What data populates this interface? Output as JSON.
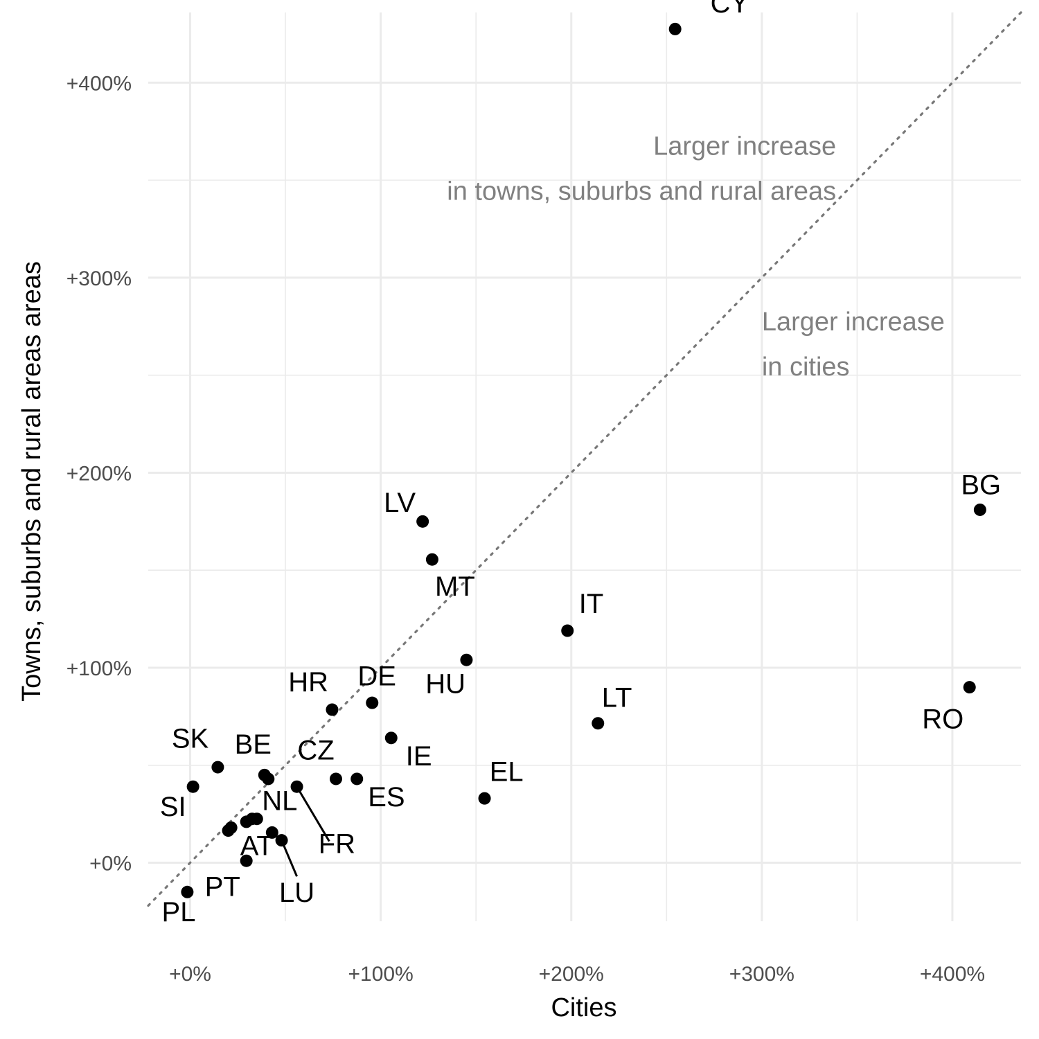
{
  "chart_data": {
    "type": "scatter",
    "title": "",
    "xlabel": "Cities",
    "ylabel": "Towns, suburbs and rural areas areas",
    "xlim": [
      -22,
      436
    ],
    "ylim": [
      -30,
      436
    ],
    "xticks": [
      {
        "value": 0,
        "label": "+0%"
      },
      {
        "value": 100,
        "label": "+100%"
      },
      {
        "value": 200,
        "label": "+200%"
      },
      {
        "value": 300,
        "label": "+300%"
      },
      {
        "value": 400,
        "label": "+400%"
      }
    ],
    "yticks": [
      {
        "value": 0,
        "label": "+0%"
      },
      {
        "value": 100,
        "label": "+100%"
      },
      {
        "value": 200,
        "label": "+200%"
      },
      {
        "value": 300,
        "label": "+300%"
      },
      {
        "value": 400,
        "label": "+400%"
      }
    ],
    "grid": true,
    "reference_line": "y = x (dotted)",
    "annotations": [
      {
        "lines": [
          "Larger increase",
          "in towns, suburbs and rural areas"
        ],
        "x": 339,
        "y": 363,
        "align": "right"
      },
      {
        "lines": [
          "Larger increase",
          "in cities"
        ],
        "x": 300,
        "y": 273,
        "align": "left"
      }
    ],
    "points": [
      {
        "label": "CY",
        "x": 254.5,
        "y": 427.5,
        "lx": 273,
        "ly": 436,
        "anchor": "start"
      },
      {
        "label": "BG",
        "x": 414.5,
        "y": 181,
        "lx": 415,
        "ly": 189,
        "anchor": "middle"
      },
      {
        "label": "RO",
        "x": 409,
        "y": 90,
        "lx": 395,
        "ly": 69,
        "anchor": "middle"
      },
      {
        "label": "LV",
        "x": 122,
        "y": 175,
        "lx": 110,
        "ly": 180,
        "anchor": "middle"
      },
      {
        "label": "MT",
        "x": 127,
        "y": 155.5,
        "lx": 139,
        "ly": 137,
        "anchor": "middle"
      },
      {
        "label": "IT",
        "x": 198,
        "y": 119,
        "lx": 204,
        "ly": 128,
        "anchor": "start"
      },
      {
        "label": "HU",
        "x": 145,
        "y": 104,
        "lx": 134,
        "ly": 87,
        "anchor": "middle"
      },
      {
        "label": "LT",
        "x": 214,
        "y": 71.5,
        "lx": 216,
        "ly": 80,
        "anchor": "start"
      },
      {
        "label": "HR",
        "x": 74.5,
        "y": 78.5,
        "lx": 62,
        "ly": 88,
        "anchor": "middle"
      },
      {
        "label": "DE",
        "x": 95.5,
        "y": 82,
        "lx": 98,
        "ly": 91,
        "anchor": "middle"
      },
      {
        "label": "IE",
        "x": 105.5,
        "y": 64,
        "lx": 120,
        "ly": 50,
        "anchor": "middle"
      },
      {
        "label": "EL",
        "x": 154.5,
        "y": 33,
        "lx": 166,
        "ly": 42,
        "anchor": "middle"
      },
      {
        "label": "ES",
        "x": 87.5,
        "y": 43,
        "lx": 103,
        "ly": 29,
        "anchor": "middle"
      },
      {
        "label": "SK",
        "x": 14.5,
        "y": 49,
        "lx": 0,
        "ly": 59,
        "anchor": "middle"
      },
      {
        "label": "BE",
        "x": 41,
        "y": 43,
        "lx": 33,
        "ly": 56,
        "anchor": "middle"
      },
      {
        "label": "CZ",
        "x": 76.5,
        "y": 43,
        "lx": 66,
        "ly": 53,
        "anchor": "middle"
      },
      {
        "label": "SI",
        "x": 1.5,
        "y": 39,
        "lx": -9,
        "ly": 24,
        "anchor": "middle"
      },
      {
        "label": "NL",
        "x": 35,
        "y": 22.5,
        "lx": 47,
        "ly": 27,
        "anchor": "middle"
      },
      {
        "label": "FR",
        "x": 56,
        "y": 39,
        "lx": 77,
        "ly": 5,
        "anchor": "middle"
      },
      {
        "label": "AT",
        "x": 29.5,
        "y": 1,
        "lx": 35,
        "ly": 4,
        "anchor": "middle"
      },
      {
        "label": "LU",
        "x": 48,
        "y": 11.5,
        "lx": 56,
        "ly": -20,
        "anchor": "middle"
      },
      {
        "label": "PT",
        "x": 21.5,
        "y": 18,
        "lx": 17,
        "ly": -17,
        "anchor": "middle"
      },
      {
        "label": "PL",
        "x": -1.5,
        "y": -15,
        "lx": -6,
        "ly": -30,
        "anchor": "middle"
      },
      {
        "label": "",
        "x": 20,
        "y": 16.5
      },
      {
        "label": "",
        "x": 29.5,
        "y": 21
      },
      {
        "label": "",
        "x": 32.5,
        "y": 22.5
      },
      {
        "label": "",
        "x": 39,
        "y": 45
      },
      {
        "label": "",
        "x": 43,
        "y": 15.5
      }
    ],
    "leader_lines": [
      {
        "from": [
          56,
          39
        ],
        "to": [
          73,
          11
        ]
      },
      {
        "from": [
          48,
          11.5
        ],
        "to": [
          56,
          -7
        ]
      }
    ]
  }
}
